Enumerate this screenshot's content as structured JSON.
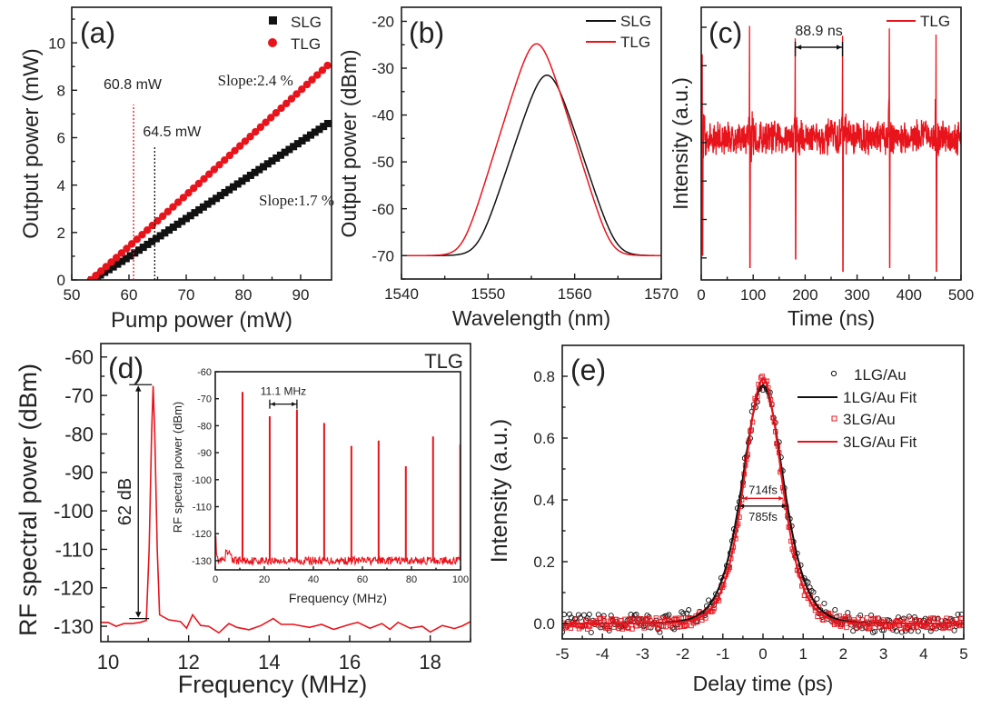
{
  "colors": {
    "red": "#e8141c",
    "black": "#111111",
    "axis": "#1a1a1a",
    "text": "#222222"
  },
  "chart_data": [
    {
      "id": "a",
      "type": "scatter",
      "panel_label": "(a)",
      "xlabel": "Pump power  (mW)",
      "ylabel": "Output power (mW)",
      "xlim": [
        50,
        95.4
      ],
      "ylim": [
        0,
        11.5
      ],
      "xticks": [
        50,
        60,
        70,
        80,
        90
      ],
      "xtick_labels": [
        "50",
        "60",
        "70",
        "80",
        "90"
      ],
      "yticks": [
        0,
        2,
        4,
        6,
        8,
        10
      ],
      "ytick_labels": [
        "0",
        "2",
        "4",
        "6",
        "8",
        "10"
      ],
      "legend": {
        "position": "top-right",
        "entries": [
          {
            "name": "SLG",
            "marker": "square",
            "color": "#111111"
          },
          {
            "name": "TLG",
            "marker": "circle",
            "color": "#e8141c"
          }
        ]
      },
      "series": [
        {
          "name": "SLG",
          "marker": "square",
          "color": "#111111",
          "threshold": 53.5,
          "slope_pct": 1.7,
          "x_range": [
            53.5,
            95.4
          ],
          "step": 0.75,
          "kink": [
            64.5,
            1.7
          ],
          "end_value": 6.7
        },
        {
          "name": "TLG",
          "marker": "circle",
          "color": "#e8141c",
          "threshold": 53.3,
          "slope_pct": 2.4,
          "x_range": [
            53.3,
            95.4
          ],
          "step": 0.9,
          "end_value": 9.2
        }
      ],
      "annotations": [
        {
          "text": "60.8 mW",
          "x": 60.8,
          "y": 8.05,
          "line_x": 60.8,
          "line_to": 7.4,
          "color": "#e8141c",
          "style": "dotted"
        },
        {
          "text": "64.5 mW",
          "x": 64.5,
          "y": 6.05,
          "line_x": 64.5,
          "line_to": 5.6,
          "color": "#111111",
          "style": "dotted"
        },
        {
          "text": "Slope:2.4 %",
          "x": 75.5,
          "y": 8.2,
          "font": "serif"
        },
        {
          "text": "Slope:1.7 %",
          "x": 82.7,
          "y": 3.15,
          "font": "serif"
        }
      ]
    },
    {
      "id": "b",
      "type": "line",
      "panel_label": "(b)",
      "xlabel": "Wavelength (nm)",
      "ylabel": "Output power (dBm)",
      "xlim": [
        1540,
        1570
      ],
      "ylim": [
        -75,
        -17
      ],
      "xticks": [
        1540,
        1550,
        1560,
        1570
      ],
      "xtick_labels": [
        "1540",
        "1550",
        "1560",
        "1570"
      ],
      "xminor": [
        1545,
        1555,
        1565
      ],
      "yticks": [
        -20,
        -30,
        -40,
        -50,
        -60,
        -70
      ],
      "ytick_labels": [
        "-20",
        "-30",
        "-40",
        "-50",
        "-60",
        "-70"
      ],
      "legend": {
        "position": "top-right",
        "entries": [
          {
            "name": "SLG",
            "color": "#111111"
          },
          {
            "name": "TLG",
            "color": "#e8141c"
          }
        ]
      },
      "series": [
        {
          "name": "SLG",
          "color": "#111111",
          "baseline": -70,
          "center": 1556.8,
          "peak": -31.5,
          "width": 1.55,
          "spikes": [
            {
              "x": 1552.4,
              "y": -61
            },
            {
              "x": 1561.0,
              "y": -59.5
            },
            {
              "x": 1549.7,
              "y": -69.3
            },
            {
              "x": 1563.9,
              "y": -69.4
            }
          ]
        },
        {
          "name": "TLG",
          "color": "#e8141c",
          "baseline": -70,
          "center": 1555.6,
          "peak": -24.8,
          "width": 1.45,
          "spikes": [
            {
              "x": 1548.6,
              "y": -67
            },
            {
              "x": 1551.1,
              "y": -62.5
            },
            {
              "x": 1559.8,
              "y": -53
            },
            {
              "x": 1557.0,
              "y": -31
            },
            {
              "x": 1562.5,
              "y": -69.4
            }
          ]
        }
      ]
    },
    {
      "id": "c",
      "type": "line",
      "panel_label": "(c)",
      "xlabel": "Time (ns)",
      "ylabel": "Intensity (a.u.)",
      "xlim": [
        0,
        500
      ],
      "ylim": [
        -1.1,
        1.1
      ],
      "xticks": [
        0,
        100,
        200,
        300,
        400,
        500
      ],
      "xtick_labels": [
        "0",
        "100",
        "200",
        "300",
        "400",
        "500"
      ],
      "yticks_unlabeled": 7,
      "legend": {
        "position": "top-right",
        "entries": [
          {
            "name": "TLG",
            "color": "#e8141c"
          }
        ]
      },
      "series": [
        {
          "name": "TLG",
          "color": "#e8141c",
          "noise_amplitude": 0.13,
          "pulses": [
            {
              "t": 2,
              "up": 0.72,
              "down": -0.9
            },
            {
              "t": 93,
              "up": 0.95,
              "down": -1.0
            },
            {
              "t": 181,
              "up": 0.85,
              "down": -0.93
            },
            {
              "t": 272,
              "up": 0.87,
              "down": -1.03
            },
            {
              "t": 362,
              "up": 0.93,
              "down": -1.0
            },
            {
              "t": 452,
              "up": 0.88,
              "down": -1.03
            }
          ]
        }
      ],
      "annotations": [
        {
          "text": "88.9 ns",
          "from": 181,
          "to": 272,
          "y": 0.89
        }
      ]
    },
    {
      "id": "d",
      "type": "line",
      "panel_label": "(d)",
      "xlabel": "Frequency (MHz)",
      "ylabel": "RF spectral power (dBm)",
      "xlim": [
        9.82,
        19.0
      ],
      "ylim": [
        -134,
        -56.5
      ],
      "xticks": [
        10,
        12,
        14,
        16,
        18
      ],
      "xtick_labels": [
        "10",
        "12",
        "14",
        "16",
        "18"
      ],
      "yticks": [
        -60,
        -70,
        -80,
        -90,
        -100,
        -110,
        -120,
        -130
      ],
      "ytick_labels": [
        "-60",
        "-70",
        "-80",
        "-90",
        "-100",
        "-110",
        "-120",
        "-130"
      ],
      "corner_label": "TLG",
      "series": [
        {
          "name": "TLG",
          "color": "#e8141c",
          "points": [
            [
              9.82,
              -129
            ],
            [
              10.0,
              -129
            ],
            [
              10.2,
              -130
            ],
            [
              10.4,
              -129.3
            ],
            [
              10.6,
              -129.3
            ],
            [
              10.8,
              -129
            ],
            [
              10.95,
              -128.5
            ],
            [
              11.02,
              -110
            ],
            [
              11.08,
              -80
            ],
            [
              11.12,
              -67.5
            ],
            [
              11.16,
              -80
            ],
            [
              11.22,
              -110
            ],
            [
              11.28,
              -127
            ],
            [
              11.5,
              -128.3
            ],
            [
              11.8,
              -128.8
            ],
            [
              11.95,
              -130.5
            ],
            [
              12.1,
              -127
            ],
            [
              12.3,
              -129.8
            ],
            [
              12.5,
              -130
            ],
            [
              12.75,
              -131.7
            ],
            [
              13.0,
              -129.3
            ],
            [
              13.2,
              -130.3
            ],
            [
              13.5,
              -130.9
            ],
            [
              13.8,
              -129.8
            ],
            [
              14.1,
              -128
            ],
            [
              14.3,
              -129.5
            ],
            [
              14.6,
              -129.5
            ],
            [
              15.0,
              -130.3
            ],
            [
              15.3,
              -129.5
            ],
            [
              15.6,
              -130.8
            ],
            [
              16.0,
              -129.5
            ],
            [
              16.2,
              -129.0
            ],
            [
              16.5,
              -130.5
            ],
            [
              16.8,
              -129.3
            ],
            [
              17.0,
              -130.8
            ],
            [
              17.2,
              -129
            ],
            [
              17.5,
              -130.5
            ],
            [
              17.8,
              -130.0
            ],
            [
              18.0,
              -131.5
            ],
            [
              18.3,
              -129.8
            ],
            [
              18.6,
              -130.6
            ],
            [
              18.8,
              -129.9
            ],
            [
              19.0,
              -128.8
            ]
          ]
        }
      ],
      "annotations": [
        {
          "text": "62 dB",
          "x": 10.75,
          "y_top": -67.2,
          "y_bottom": -128
        }
      ],
      "inset": {
        "xlabel": "Frequency (MHz)",
        "ylabel": "RF spectral power (dBm)",
        "xlim": [
          0,
          100
        ],
        "ylim": [
          -133.4,
          -60
        ],
        "xticks": [
          0,
          20,
          40,
          60,
          80,
          100
        ],
        "xtick_labels": [
          "0",
          "20",
          "40",
          "60",
          "80",
          "100"
        ],
        "yticks": [
          -60,
          -70,
          -80,
          -90,
          -100,
          -110,
          -120,
          -130
        ],
        "ytick_labels": [
          "-60",
          "-70",
          "-80",
          "-90",
          "-100",
          "-110",
          "-120",
          "-130"
        ],
        "floor": -130,
        "harmonics": [
          {
            "f": 11.1,
            "y": -67.5
          },
          {
            "f": 22.2,
            "y": -76.5
          },
          {
            "f": 33.3,
            "y": -74
          },
          {
            "f": 44.4,
            "y": -79
          },
          {
            "f": 55.5,
            "y": -87.5
          },
          {
            "f": 66.6,
            "y": -85.5
          },
          {
            "f": 77.7,
            "y": -95
          },
          {
            "f": 88.8,
            "y": -84
          },
          {
            "f": 99.9,
            "y": -87
          }
        ],
        "annotation": {
          "text": "11.1 MHz",
          "from": 22.2,
          "to": 33.3,
          "y": -72
        }
      }
    },
    {
      "id": "e",
      "type": "scatter",
      "panel_label": "(e)",
      "xlabel": "Delay time (ps)",
      "ylabel": "Intensity (a.u.)",
      "xlim": [
        -5,
        5
      ],
      "ylim": [
        -0.05,
        0.9
      ],
      "xticks": [
        -5,
        -4,
        -3,
        -2,
        -1,
        0,
        1,
        2,
        3,
        4,
        5
      ],
      "xtick_labels": [
        "-5",
        "-4",
        "-3",
        "-2",
        "-1",
        "0",
        "1",
        "2",
        "3",
        "4",
        "5"
      ],
      "yticks": [
        0.0,
        0.2,
        0.4,
        0.6,
        0.8
      ],
      "ytick_labels": [
        "0.0",
        "0.2",
        "0.4",
        "0.6",
        "0.8"
      ],
      "legend": {
        "position": "top-right",
        "entries": [
          {
            "name": "1LG/Au",
            "type": "marker",
            "marker": "open-circle",
            "color": "#111111"
          },
          {
            "name": "1LG/Au Fit",
            "type": "line",
            "color": "#111111"
          },
          {
            "name": "3LG/Au",
            "type": "marker",
            "marker": "open-square",
            "color": "#e8141c"
          },
          {
            "name": "3LG/Au Fit",
            "type": "line",
            "color": "#e8141c"
          }
        ]
      },
      "series": [
        {
          "name": "1LG/Au",
          "type": "marker",
          "marker": "open-circle",
          "color": "#111111",
          "peak": 0.77,
          "fwhm_ps": 1.21,
          "noise": 0.03
        },
        {
          "name": "1LG/Au Fit",
          "type": "line",
          "color": "#111111",
          "peak": 0.77,
          "fwhm_ps": 1.21
        },
        {
          "name": "3LG/Au",
          "type": "marker",
          "marker": "open-square",
          "color": "#e8141c",
          "peak": 0.79,
          "fwhm_ps": 1.1,
          "noise": 0.018
        },
        {
          "name": "3LG/Au Fit",
          "type": "line",
          "color": "#e8141c",
          "peak": 0.79,
          "fwhm_ps": 1.1
        }
      ],
      "annotations": [
        {
          "text": "714fs",
          "from": -0.5,
          "to": 0.5,
          "y": 0.405,
          "color": "#e8141c"
        },
        {
          "text": "785fs",
          "from": -0.58,
          "to": 0.58,
          "y": 0.38,
          "color": "#111111"
        }
      ]
    }
  ]
}
